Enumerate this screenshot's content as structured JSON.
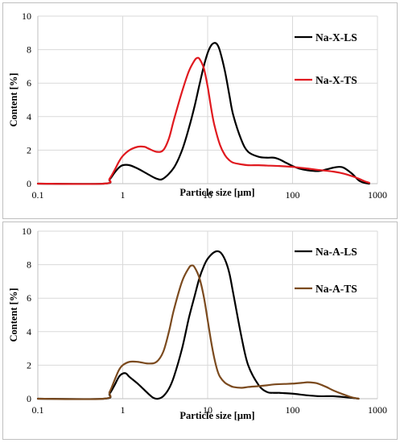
{
  "chart_data": [
    {
      "type": "line",
      "xscale": "log",
      "xlabel": "Particle size [μm]",
      "ylabel": "Content [%]",
      "xlim": [
        0.1,
        1000
      ],
      "ylim": [
        0,
        10
      ],
      "xticks": [
        "0.1",
        "1",
        "10",
        "100",
        "1000"
      ],
      "yticks": [
        "0",
        "2",
        "4",
        "6",
        "8",
        "10"
      ],
      "grid": true,
      "legend": "right",
      "series": [
        {
          "name": "Na-X-LS",
          "color": "#000000",
          "x": [
            0.1,
            0.6,
            0.7,
            0.8,
            0.9,
            1.0,
            1.2,
            1.5,
            2.0,
            2.5,
            3.0,
            4.0,
            5.0,
            6.0,
            7.0,
            8.0,
            9.0,
            10.0,
            11.0,
            12.0,
            13.0,
            14.0,
            16.0,
            18.0,
            20.0,
            25.0,
            30.0,
            40.0,
            50.0,
            60.0,
            70.0,
            80.0,
            100.0,
            120.0,
            150.0,
            200.0,
            250.0,
            300.0,
            350.0,
            400.0,
            500.0,
            600.0,
            700.0,
            800.0
          ],
          "y": [
            0,
            0,
            0.25,
            0.65,
            0.95,
            1.1,
            1.1,
            0.9,
            0.55,
            0.3,
            0.3,
            0.95,
            2.0,
            3.3,
            4.6,
            5.9,
            7.0,
            7.8,
            8.25,
            8.4,
            8.3,
            7.9,
            6.7,
            5.3,
            4.1,
            2.6,
            1.9,
            1.6,
            1.55,
            1.55,
            1.45,
            1.3,
            1.05,
            0.9,
            0.8,
            0.75,
            0.85,
            0.95,
            1.0,
            0.95,
            0.6,
            0.2,
            0.05,
            0
          ]
        },
        {
          "name": "Na-X-TS",
          "color": "#e0191f",
          "x": [
            0.1,
            0.6,
            0.7,
            0.8,
            0.9,
            1.0,
            1.2,
            1.5,
            1.8,
            2.0,
            2.5,
            3.0,
            3.5,
            4.0,
            5.0,
            6.0,
            7.0,
            7.5,
            8.0,
            9.0,
            10.0,
            11.0,
            12.0,
            14.0,
            16.0,
            18.0,
            20.0,
            25.0,
            30.0,
            40.0,
            50.0,
            70.0,
            100.0,
            150.0,
            200.0,
            300.0,
            400.0,
            500.0,
            600.0,
            700.0,
            800.0
          ],
          "y": [
            0,
            0,
            0.3,
            0.8,
            1.3,
            1.65,
            2.0,
            2.2,
            2.2,
            2.1,
            1.9,
            2.0,
            2.7,
            3.8,
            5.5,
            6.7,
            7.35,
            7.5,
            7.45,
            6.9,
            5.8,
            4.5,
            3.5,
            2.3,
            1.7,
            1.4,
            1.25,
            1.15,
            1.1,
            1.1,
            1.08,
            1.05,
            1.0,
            0.9,
            0.82,
            0.72,
            0.6,
            0.45,
            0.3,
            0.15,
            0.05
          ]
        }
      ]
    },
    {
      "type": "line",
      "xscale": "log",
      "xlabel": "Particle size [μm]",
      "ylabel": "Content [%]",
      "xlim": [
        0.1,
        1000
      ],
      "ylim": [
        0,
        10
      ],
      "xticks": [
        "0.1",
        "1",
        "10",
        "100",
        "1000"
      ],
      "yticks": [
        "0",
        "2",
        "4",
        "6",
        "8",
        "10"
      ],
      "grid": true,
      "legend": "right",
      "series": [
        {
          "name": "Na-A-LS",
          "color": "#000000",
          "x": [
            0.1,
            0.6,
            0.7,
            0.8,
            0.9,
            1.0,
            1.1,
            1.2,
            1.5,
            2.0,
            2.3,
            2.6,
            3.0,
            3.5,
            4.0,
            5.0,
            6.0,
            7.0,
            8.0,
            9.0,
            10.0,
            12.0,
            14.0,
            16.0,
            18.0,
            20.0,
            25.0,
            30.0,
            40.0,
            50.0,
            60.0,
            70.0,
            80.0,
            100.0,
            150.0,
            200.0,
            250.0,
            300.0,
            400.0,
            500.0,
            600.0
          ],
          "y": [
            0,
            0,
            0.3,
            0.8,
            1.3,
            1.5,
            1.5,
            1.3,
            0.9,
            0.3,
            0.05,
            0,
            0.15,
            0.6,
            1.3,
            3.0,
            4.8,
            6.1,
            7.2,
            7.9,
            8.35,
            8.75,
            8.75,
            8.3,
            7.5,
            6.3,
            3.7,
            2.0,
            0.8,
            0.4,
            0.35,
            0.35,
            0.33,
            0.3,
            0.2,
            0.15,
            0.15,
            0.15,
            0.1,
            0.05,
            0
          ]
        },
        {
          "name": "Na-A-TS",
          "color": "#7b4a1e",
          "x": [
            0.1,
            0.6,
            0.7,
            0.8,
            0.9,
            1.0,
            1.2,
            1.5,
            2.0,
            2.5,
            3.0,
            3.5,
            4.0,
            5.0,
            6.0,
            6.5,
            7.0,
            8.0,
            9.0,
            10.0,
            11.0,
            12.0,
            13.0,
            14.0,
            16.0,
            18.0,
            20.0,
            25.0,
            30.0,
            40.0,
            50.0,
            60.0,
            80.0,
            100.0,
            130.0,
            150.0,
            180.0,
            200.0,
            250.0,
            300.0,
            400.0,
            500.0,
            600.0
          ],
          "y": [
            0,
            0,
            0.4,
            1.1,
            1.7,
            2.0,
            2.2,
            2.2,
            2.1,
            2.2,
            2.8,
            4.0,
            5.3,
            7.0,
            7.8,
            7.95,
            7.85,
            7.2,
            6.1,
            4.7,
            3.4,
            2.4,
            1.7,
            1.3,
            0.95,
            0.8,
            0.7,
            0.65,
            0.7,
            0.75,
            0.8,
            0.85,
            0.88,
            0.9,
            0.95,
            0.98,
            0.95,
            0.9,
            0.7,
            0.5,
            0.25,
            0.08,
            0
          ]
        }
      ]
    }
  ]
}
